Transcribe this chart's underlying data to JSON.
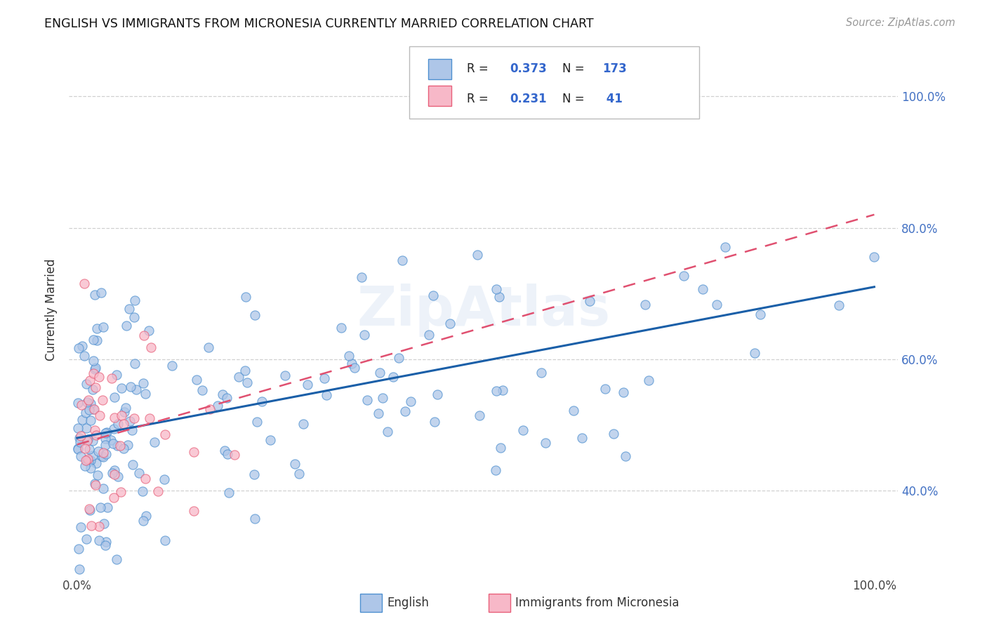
{
  "title": "ENGLISH VS IMMIGRANTS FROM MICRONESIA CURRENTLY MARRIED CORRELATION CHART",
  "source": "Source: ZipAtlas.com",
  "ylabel": "Currently Married",
  "watermark": "ZipAtlas",
  "legend_english_r": "0.373",
  "legend_english_n": "173",
  "legend_micronesia_r": "0.231",
  "legend_micronesia_n": " 41",
  "english_color": "#aec6e8",
  "micronesia_color": "#f7b8c8",
  "english_edge_color": "#4e90d0",
  "micronesia_edge_color": "#e8607a",
  "english_line_color": "#1a5fa8",
  "micronesia_line_color": "#e05070",
  "right_ytick_labels": [
    "40.0%",
    "60.0%",
    "80.0%",
    "100.0%"
  ],
  "right_ytick_values": [
    0.4,
    0.6,
    0.8,
    1.0
  ],
  "right_ytick_color": "#4472c4",
  "ylim_min": 0.27,
  "ylim_max": 1.08,
  "xlim_min": -0.01,
  "xlim_max": 1.03,
  "eng_line_x0": 0.0,
  "eng_line_x1": 1.0,
  "eng_line_y0": 0.48,
  "eng_line_y1": 0.71,
  "mic_line_x0": 0.0,
  "mic_line_x1": 1.0,
  "mic_line_y0": 0.47,
  "mic_line_y1": 0.82,
  "grid_color": "#d0d0d0",
  "grid_yticks": [
    0.4,
    0.6,
    0.8,
    1.0
  ]
}
